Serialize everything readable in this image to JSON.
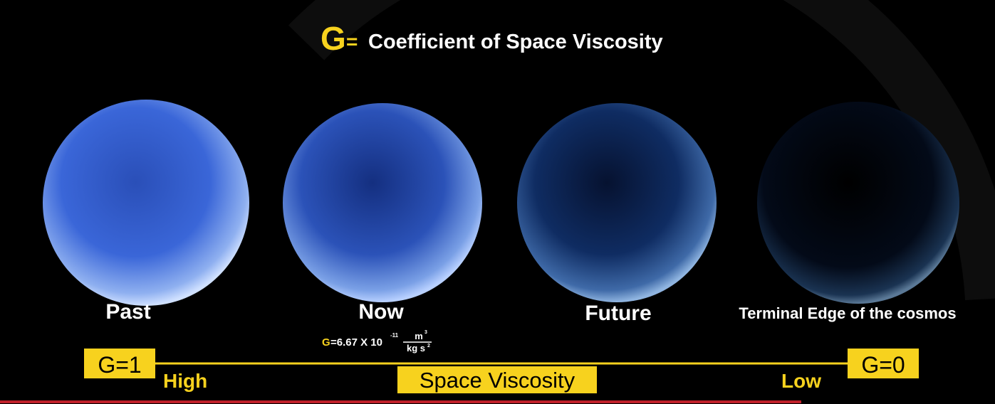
{
  "title": {
    "symbol": "G",
    "equals": "=",
    "text": "Coefficient of Space Viscosity"
  },
  "stages": [
    {
      "label": "Past"
    },
    {
      "label": "Now"
    },
    {
      "label": "Future"
    },
    {
      "label": "Terminal Edge of the cosmos"
    }
  ],
  "formula": {
    "symbol": "G",
    "rest": "=6.67 X 10",
    "exponent": "-11",
    "numerator": "m",
    "numerator_power": "3",
    "denominator": "kg s",
    "denominator_power": "2"
  },
  "scale": {
    "left": "G=1",
    "high": "High",
    "middle": "Space Viscosity",
    "low": "Low",
    "right": "G=0"
  }
}
